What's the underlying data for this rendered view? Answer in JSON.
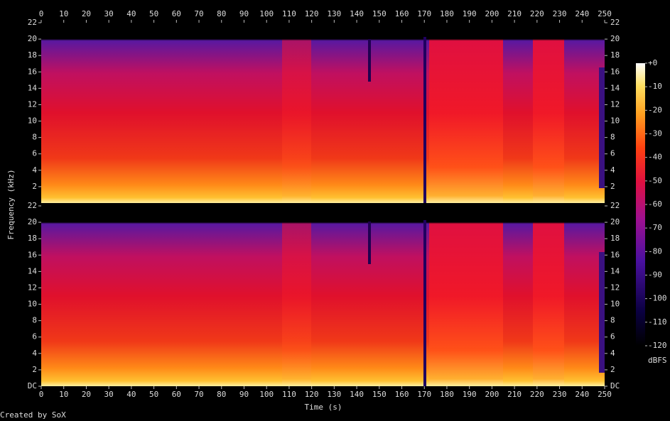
{
  "chart_data": {
    "type": "spectrogram",
    "xlabel": "Time (s)",
    "ylabel": "Frequency (kHz)",
    "xlim": [
      0,
      250
    ],
    "xticks": [
      0,
      10,
      20,
      30,
      40,
      50,
      60,
      70,
      80,
      90,
      100,
      110,
      120,
      130,
      140,
      150,
      160,
      170,
      180,
      190,
      200,
      210,
      220,
      230,
      240,
      250
    ],
    "channels": [
      {
        "ylim": [
          0,
          22
        ],
        "yticks": [
          2,
          4,
          6,
          8,
          10,
          12,
          14,
          16,
          18,
          20,
          22
        ]
      },
      {
        "ylim": [
          0,
          22
        ],
        "yticks": [
          {
            "value": 0,
            "label": "DC"
          },
          2,
          4,
          6,
          8,
          10,
          12,
          14,
          16,
          18,
          20,
          22
        ]
      }
    ],
    "colorbar": {
      "label": "dBFS",
      "lim": [
        -120,
        0
      ],
      "ticks": [
        {
          "value": 0,
          "label": "+0"
        },
        -10,
        -20,
        -30,
        -40,
        -50,
        -60,
        -70,
        -80,
        -90,
        -100,
        -110,
        -120
      ]
    },
    "credit": "Created by SoX"
  }
}
